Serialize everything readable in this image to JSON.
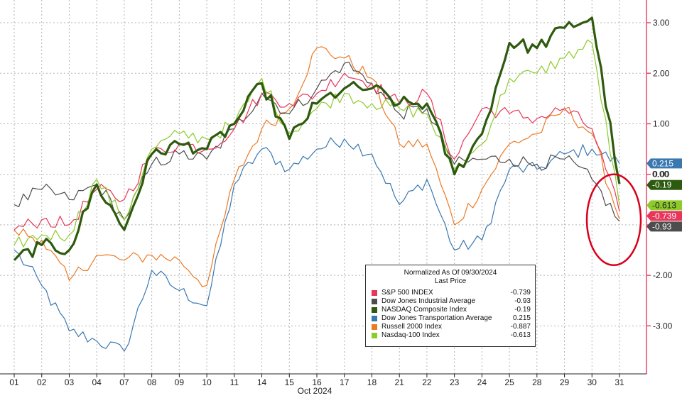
{
  "chart_data": {
    "type": "line",
    "title": "Normalized As Of 09/30/2024",
    "subtitle": "Last Price",
    "xlabel": "Oct 2024",
    "ylabel": "",
    "x_ticks": [
      "01",
      "02",
      "03",
      "04",
      "07",
      "08",
      "09",
      "10",
      "11",
      "14",
      "15",
      "16",
      "17",
      "18",
      "21",
      "22",
      "23",
      "24",
      "25",
      "28",
      "29",
      "30",
      "31"
    ],
    "y_ticks": [
      {
        "value": 3,
        "label": "3.00"
      },
      {
        "value": 2,
        "label": "2.00"
      },
      {
        "value": 1,
        "label": "1.00"
      },
      {
        "value": 0,
        "label": "0.00"
      },
      {
        "value": -1,
        "label": "-1.00"
      },
      {
        "value": -2,
        "label": "-2.00"
      },
      {
        "value": -3,
        "label": "-3.00"
      }
    ],
    "ylim": [
      -3.95,
      3.45
    ],
    "grid": true,
    "legend_position": "bottom-center",
    "axis_color": "#e8466e",
    "annotation": {
      "type": "ellipse",
      "color": "#d9001b",
      "around": "31"
    },
    "series": [
      {
        "name": "S&P 500 INDEX",
        "color": "#e8355a",
        "last": "-0.739",
        "values": [
          -1.1,
          -0.9,
          -1.0,
          -0.3,
          -0.5,
          0.4,
          0.6,
          0.5,
          0.9,
          1.6,
          1.4,
          1.6,
          2.0,
          1.8,
          1.4,
          1.6,
          0.3,
          1.3,
          1.2,
          1.1,
          1.3,
          0.9,
          -0.739
        ]
      },
      {
        "name": "Dow Jones Industrial Average",
        "color": "#4d4d4d",
        "last": "-0.93",
        "values": [
          -0.6,
          -0.3,
          -0.5,
          -0.2,
          -0.9,
          0.2,
          0.4,
          0.3,
          0.9,
          1.6,
          1.2,
          1.7,
          2.2,
          1.8,
          1.2,
          1.3,
          0.2,
          0.3,
          0.3,
          0.2,
          0.3,
          -0.1,
          -0.93
        ]
      },
      {
        "name": "NASDAQ Composite Index",
        "color": "#2d5a0e",
        "last": "-0.19",
        "values": [
          -1.7,
          -1.4,
          -1.5,
          -0.2,
          -1.1,
          0.4,
          0.6,
          0.5,
          1.0,
          1.8,
          0.7,
          1.4,
          1.7,
          1.7,
          1.4,
          1.4,
          0.0,
          0.8,
          2.6,
          2.5,
          2.9,
          3.1,
          -0.19
        ]
      },
      {
        "name": "Dow Jones Transportation Average",
        "color": "#3a78b0",
        "last": "0.215",
        "values": [
          -1.5,
          -2.2,
          -3.1,
          -3.3,
          -3.5,
          -1.9,
          -2.3,
          -2.6,
          -0.2,
          0.5,
          0.1,
          0.5,
          0.7,
          0.4,
          -0.6,
          -0.1,
          -1.5,
          -1.3,
          0.1,
          0.1,
          0.4,
          0.5,
          0.215
        ]
      },
      {
        "name": "Russell 2000 Index",
        "color": "#ec7a23",
        "last": "-0.887",
        "values": [
          -1.1,
          -1.3,
          -2.1,
          -1.6,
          -1.7,
          -1.6,
          -1.7,
          -2.2,
          -0.1,
          0.9,
          1.3,
          2.5,
          2.3,
          1.9,
          0.6,
          0.6,
          -1.0,
          -0.3,
          0.6,
          0.8,
          1.3,
          0.8,
          -0.887
        ]
      },
      {
        "name": "Nasdaq-100 Index",
        "color": "#8ccb2a",
        "last": "-0.613",
        "values": [
          -1.4,
          -1.2,
          -1.2,
          -0.1,
          -0.9,
          0.5,
          0.8,
          0.7,
          1.0,
          1.9,
          0.8,
          1.3,
          1.6,
          1.4,
          1.3,
          1.2,
          0.1,
          0.6,
          1.9,
          2.0,
          2.3,
          2.6,
          -0.613
        ]
      }
    ]
  },
  "badges": [
    {
      "value": "0.215",
      "y": 0.215,
      "bg": "#3a78b0",
      "fg": "#ffffff"
    },
    {
      "value": "0.00",
      "y": 0.0,
      "bg": "#ffffff",
      "fg": "#333333"
    },
    {
      "value": "-0.19",
      "y": -0.19,
      "bg": "#2d5a0e",
      "fg": "#ffffff"
    },
    {
      "value": "-0.613",
      "y": -0.613,
      "bg": "#8ccb2a",
      "fg": "#222222"
    },
    {
      "value": "-0.739",
      "y": -0.739,
      "bg": "#e8355a",
      "fg": "#ffffff"
    },
    {
      "value": "-0.93",
      "y": -0.93,
      "bg": "#4d4d4d",
      "fg": "#ffffff"
    }
  ]
}
